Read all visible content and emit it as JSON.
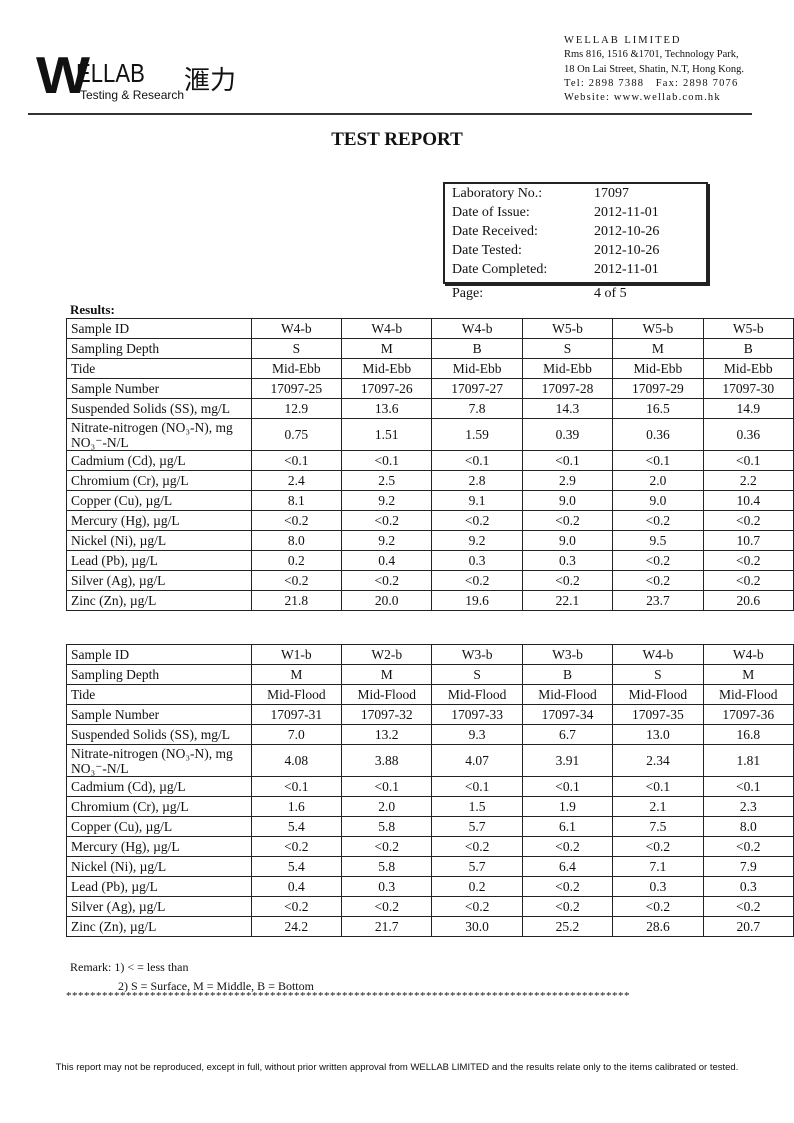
{
  "logo": {
    "mark": "W",
    "name": "ELLAB",
    "tagline": "Testing & Research",
    "chinese": "滙力"
  },
  "company": {
    "name": "WELLAB LIMITED",
    "address1": "Rms 816, 1516 &1701, Technology Park,",
    "address2": "18 On Lai Street, Shatin, N.T, Hong Kong.",
    "phone": "Tel: 2898 7388   Fax: 2898 7076",
    "website": "Website: www.wellab.com.hk"
  },
  "title": "TEST REPORT",
  "info": [
    {
      "label": "Laboratory No.:",
      "value": "17097"
    },
    {
      "label": "Date of Issue:",
      "value": "2012-11-01"
    },
    {
      "label": "Date Received:",
      "value": "2012-10-26"
    },
    {
      "label": "Date Tested:",
      "value": "2012-10-26"
    },
    {
      "label": "Date Completed:",
      "value": "2012-11-01"
    },
    {
      "label": "Page:",
      "value": "4 of 5"
    }
  ],
  "results_label": "Results:",
  "tables": [
    {
      "rows": [
        [
          "Sample ID",
          "W4-b",
          "W4-b",
          "W4-b",
          "W5-b",
          "W5-b",
          "W5-b"
        ],
        [
          "Sampling Depth",
          "S",
          "M",
          "B",
          "S",
          "M",
          "B"
        ],
        [
          "Tide",
          "Mid-Ebb",
          "Mid-Ebb",
          "Mid-Ebb",
          "Mid-Ebb",
          "Mid-Ebb",
          "Mid-Ebb"
        ],
        [
          "Sample Number",
          "17097-25",
          "17097-26",
          "17097-27",
          "17097-28",
          "17097-29",
          "17097-30"
        ],
        [
          "Suspended Solids (SS), mg/L",
          "12.9",
          "13.6",
          "7.8",
          "14.3",
          "16.5",
          "14.9"
        ],
        [
          "Nitrate-nitrogen (NO₃-N), mg NO₃⁻-N/L",
          "0.75",
          "1.51",
          "1.59",
          "0.39",
          "0.36",
          "0.36"
        ],
        [
          "Cadmium (Cd), µg/L",
          "<0.1",
          "<0.1",
          "<0.1",
          "<0.1",
          "<0.1",
          "<0.1"
        ],
        [
          "Chromium (Cr), µg/L",
          "2.4",
          "2.5",
          "2.8",
          "2.9",
          "2.0",
          "2.2"
        ],
        [
          "Copper (Cu), µg/L",
          "8.1",
          "9.2",
          "9.1",
          "9.0",
          "9.0",
          "10.4"
        ],
        [
          "Mercury (Hg), µg/L",
          "<0.2",
          "<0.2",
          "<0.2",
          "<0.2",
          "<0.2",
          "<0.2"
        ],
        [
          "Nickel (Ni), µg/L",
          "8.0",
          "9.2",
          "9.2",
          "9.0",
          "9.5",
          "10.7"
        ],
        [
          "Lead (Pb), µg/L",
          "0.2",
          "0.4",
          "0.3",
          "0.3",
          "<0.2",
          "<0.2"
        ],
        [
          "Silver (Ag), µg/L",
          "<0.2",
          "<0.2",
          "<0.2",
          "<0.2",
          "<0.2",
          "<0.2"
        ],
        [
          "Zinc (Zn), µg/L",
          "21.8",
          "20.0",
          "19.6",
          "22.1",
          "23.7",
          "20.6"
        ]
      ]
    },
    {
      "rows": [
        [
          "Sample ID",
          "W1-b",
          "W2-b",
          "W3-b",
          "W3-b",
          "W4-b",
          "W4-b"
        ],
        [
          "Sampling Depth",
          "M",
          "M",
          "S",
          "B",
          "S",
          "M"
        ],
        [
          "Tide",
          "Mid-Flood",
          "Mid-Flood",
          "Mid-Flood",
          "Mid-Flood",
          "Mid-Flood",
          "Mid-Flood"
        ],
        [
          "Sample Number",
          "17097-31",
          "17097-32",
          "17097-33",
          "17097-34",
          "17097-35",
          "17097-36"
        ],
        [
          "Suspended Solids (SS), mg/L",
          "7.0",
          "13.2",
          "9.3",
          "6.7",
          "13.0",
          "16.8"
        ],
        [
          "Nitrate-nitrogen (NO₃-N), mg NO₃⁻-N/L",
          "4.08",
          "3.88",
          "4.07",
          "3.91",
          "2.34",
          "1.81"
        ],
        [
          "Cadmium (Cd), µg/L",
          "<0.1",
          "<0.1",
          "<0.1",
          "<0.1",
          "<0.1",
          "<0.1"
        ],
        [
          "Chromium (Cr), µg/L",
          "1.6",
          "2.0",
          "1.5",
          "1.9",
          "2.1",
          "2.3"
        ],
        [
          "Copper (Cu), µg/L",
          "5.4",
          "5.8",
          "5.7",
          "6.1",
          "7.5",
          "8.0"
        ],
        [
          "Mercury (Hg), µg/L",
          "<0.2",
          "<0.2",
          "<0.2",
          "<0.2",
          "<0.2",
          "<0.2"
        ],
        [
          "Nickel (Ni), µg/L",
          "5.4",
          "5.8",
          "5.7",
          "6.4",
          "7.1",
          "7.9"
        ],
        [
          "Lead (Pb), µg/L",
          "0.4",
          "0.3",
          "0.2",
          "<0.2",
          "0.3",
          "0.3"
        ],
        [
          "Silver (Ag), µg/L",
          "<0.2",
          "<0.2",
          "<0.2",
          "<0.2",
          "<0.2",
          "<0.2"
        ],
        [
          "Zinc (Zn), µg/L",
          "24.2",
          "21.7",
          "30.0",
          "25.2",
          "28.6",
          "20.7"
        ]
      ]
    }
  ],
  "remarks": [
    "Remark: 1) < = less than",
    "2) S = Surface, M = Middle, B = Bottom"
  ],
  "end_marker": "**********************************************************************************************",
  "footer": "This report may not be reproduced, except in full, without prior written approval from WELLAB LIMITED and the results relate only to the items calibrated or tested."
}
